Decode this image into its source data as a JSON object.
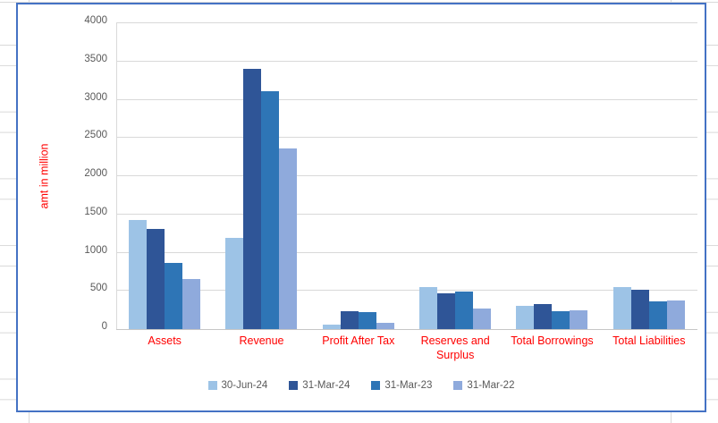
{
  "chart_data": {
    "type": "bar",
    "title": "",
    "xlabel": "",
    "ylabel": "amt in million",
    "ylim": [
      0,
      4000
    ],
    "ytick_interval": 500,
    "yticks": [
      "4000",
      "3500",
      "3000",
      "2500",
      "2000",
      "1500",
      "1000",
      "500",
      "0"
    ],
    "grid": true,
    "legend_position": "bottom",
    "categories": [
      "Assets",
      "Revenue",
      "Profit After Tax",
      "Reserves and Surplus",
      "Total Borrowings",
      "Total Liabilities"
    ],
    "series": [
      {
        "name": "30-Jun-24",
        "color": "#9DC3E6",
        "values": [
          1425,
          1190,
          60,
          545,
          310,
          555
        ]
      },
      {
        "name": "31-Mar-24",
        "color": "#2F5597",
        "values": [
          1305,
          3400,
          230,
          470,
          330,
          510
        ]
      },
      {
        "name": "31-Mar-23",
        "color": "#2E75B6",
        "values": [
          865,
          3110,
          220,
          495,
          230,
          360
        ]
      },
      {
        "name": "31-Mar-22",
        "color": "#8FAADC",
        "values": [
          650,
          2360,
          80,
          265,
          250,
          380
        ]
      }
    ],
    "colors": {
      "category_label": "#FF0000",
      "axis_title": "#FF0000",
      "tick_label": "#595959",
      "gridline": "#D9D9D9",
      "chart_border": "#4472C4"
    }
  }
}
